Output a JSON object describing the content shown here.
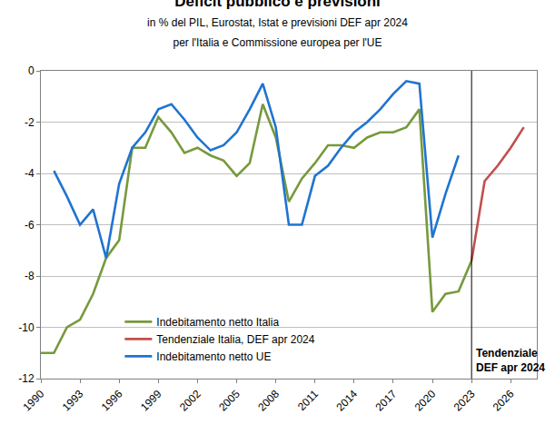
{
  "chart_data": {
    "type": "line",
    "title": "Deficit pubblico e previsioni",
    "subtitle": [
      "in % del PIL, Eurostat, Istat e previsioni DEF apr 2024",
      "per l'Italia e Commissione europea per l'UE"
    ],
    "series": [
      {
        "name": "Indebitamento netto Italia",
        "color": "#77993c",
        "x": [
          1990,
          1991,
          1992,
          1993,
          1994,
          1995,
          1996,
          1997,
          1998,
          1999,
          2000,
          2001,
          2002,
          2003,
          2004,
          2005,
          2006,
          2007,
          2008,
          2009,
          2010,
          2011,
          2012,
          2013,
          2014,
          2015,
          2016,
          2017,
          2018,
          2019,
          2020,
          2021,
          2022,
          2023
        ],
        "values": [
          -11.0,
          -11.0,
          -10.0,
          -9.7,
          -8.7,
          -7.3,
          -6.6,
          -3.0,
          -3.0,
          -1.8,
          -2.4,
          -3.2,
          -3.0,
          -3.3,
          -3.5,
          -4.1,
          -3.6,
          -1.3,
          -2.6,
          -5.1,
          -4.2,
          -3.6,
          -2.9,
          -2.9,
          -3.0,
          -2.6,
          -2.4,
          -2.4,
          -2.2,
          -1.5,
          -9.4,
          -8.7,
          -8.6,
          -7.4
        ]
      },
      {
        "name": "Tendenziale Italia, DEF apr 2024",
        "color": "#c0504d",
        "x": [
          2023,
          2024,
          2025,
          2026,
          2027
        ],
        "values": [
          -7.4,
          -4.3,
          -3.7,
          -3.0,
          -2.2
        ]
      },
      {
        "name": "Indebitamento netto UE",
        "color": "#1f74d0",
        "x": [
          1991,
          1992,
          1993,
          1994,
          1995,
          1996,
          1997,
          1998,
          1999,
          2000,
          2001,
          2002,
          2003,
          2004,
          2005,
          2006,
          2007,
          2008,
          2009,
          2010,
          2011,
          2012,
          2013,
          2014,
          2015,
          2016,
          2017,
          2018,
          2019,
          2020,
          2021,
          2022
        ],
        "values": [
          -3.9,
          -4.9,
          -6.0,
          -5.4,
          -7.3,
          -4.4,
          -3.0,
          -2.4,
          -1.5,
          -1.3,
          -1.9,
          -2.6,
          -3.1,
          -2.9,
          -2.4,
          -1.5,
          -0.5,
          -2.2,
          -6.0,
          -6.0,
          -4.1,
          -3.7,
          -3.0,
          -2.4,
          -2.0,
          -1.5,
          -0.9,
          -0.4,
          -0.5,
          -6.5,
          -4.8,
          -3.3
        ]
      }
    ],
    "xlim": [
      1990,
      2028
    ],
    "xticks": [
      1990,
      1993,
      1996,
      1999,
      2002,
      2005,
      2008,
      2011,
      2014,
      2017,
      2020,
      2023,
      2026
    ],
    "ylim": [
      -12,
      0
    ],
    "yticks": [
      -12,
      -10,
      -8,
      -6,
      -4,
      -2,
      0
    ],
    "grid": true,
    "legend": "lower left",
    "annotations": [
      {
        "text": [
          "Tendenziale",
          "DEF apr 2024"
        ],
        "x": 2023
      }
    ]
  }
}
